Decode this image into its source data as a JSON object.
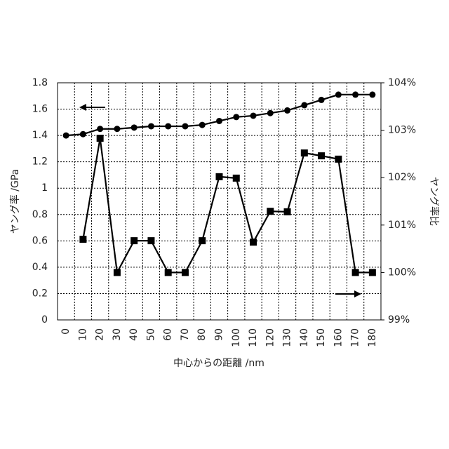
{
  "chart_data": {
    "type": "line",
    "xlabel": "中心からの距離 /nm",
    "ylabel": "ヤング率 /GPa",
    "y2label": "ヤング率比",
    "categories": [
      "0",
      "10",
      "20",
      "30",
      "40",
      "50",
      "60",
      "70",
      "80",
      "90",
      "100",
      "110",
      "120",
      "130",
      "140",
      "150",
      "160",
      "170",
      "180"
    ],
    "series": [
      {
        "color": "#000000",
        "marker": "circle",
        "axis": "y",
        "values": [
          1.4,
          1.41,
          1.45,
          1.45,
          1.46,
          1.47,
          1.47,
          1.47,
          1.48,
          1.51,
          1.54,
          1.55,
          1.57,
          1.59,
          1.63,
          1.67,
          1.71,
          1.71,
          1.71
        ]
      },
      {
        "color": "#000000",
        "marker": "square",
        "axis": "y2",
        "values": [
          null,
          100.7,
          102.83,
          100.0,
          100.67,
          100.67,
          100.0,
          100.0,
          100.67,
          102.02,
          101.99,
          100.64,
          101.29,
          101.28,
          102.52,
          102.46,
          102.39,
          100.0,
          100.0
        ]
      }
    ],
    "ylim": [
      0,
      1.8
    ],
    "yticks": [
      0,
      0.2,
      0.4,
      0.6,
      0.8,
      1,
      1.2,
      1.4,
      1.6,
      1.8
    ],
    "y2lim": [
      99,
      104
    ],
    "y2ticks": [
      {
        "value": 99,
        "label": "99%"
      },
      {
        "value": 100,
        "label": "100%"
      },
      {
        "value": 101,
        "label": "101%"
      },
      {
        "value": 102,
        "label": "102%"
      },
      {
        "value": 103,
        "label": "103%"
      },
      {
        "value": 104,
        "label": "104%"
      }
    ],
    "grid": true
  }
}
